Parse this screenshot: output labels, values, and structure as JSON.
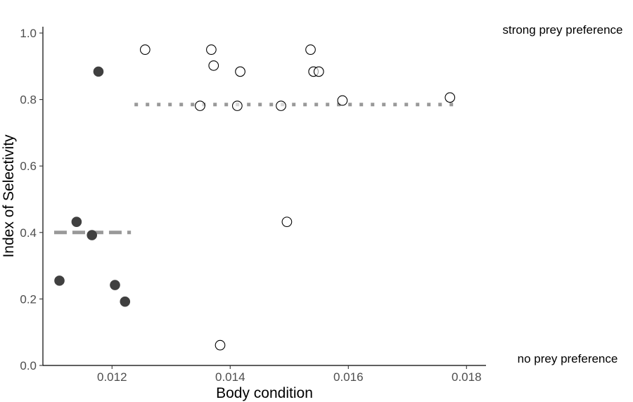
{
  "chart_data": {
    "type": "scatter",
    "xlabel": "Body condition",
    "ylabel": "Index of Selectivity",
    "xlim": [
      0.01083,
      0.01833
    ],
    "ylim": [
      0.0,
      1.0
    ],
    "x_ticks": [
      0.012,
      0.014,
      0.016,
      0.018
    ],
    "y_ticks": [
      0.0,
      0.2,
      0.4,
      0.6,
      0.8,
      1.0
    ],
    "grid": false,
    "annotations": {
      "top": "strong prey preference",
      "bottom": "no prey preference"
    },
    "series": [
      {
        "marker": "filled-circle",
        "color": "#404040",
        "points": [
          {
            "x": 0.01111,
            "y": 0.255
          },
          {
            "x": 0.0114,
            "y": 0.432
          },
          {
            "x": 0.01166,
            "y": 0.392
          },
          {
            "x": 0.01177,
            "y": 0.884
          },
          {
            "x": 0.01205,
            "y": 0.242
          },
          {
            "x": 0.01222,
            "y": 0.192
          }
        ]
      },
      {
        "marker": "open-circle",
        "color": "#000000",
        "points": [
          {
            "x": 0.01256,
            "y": 0.95
          },
          {
            "x": 0.01349,
            "y": 0.781
          },
          {
            "x": 0.01368,
            "y": 0.95
          },
          {
            "x": 0.01372,
            "y": 0.902
          },
          {
            "x": 0.01383,
            "y": 0.061
          },
          {
            "x": 0.01412,
            "y": 0.781
          },
          {
            "x": 0.01417,
            "y": 0.884
          },
          {
            "x": 0.01486,
            "y": 0.781
          },
          {
            "x": 0.01496,
            "y": 0.432
          },
          {
            "x": 0.01536,
            "y": 0.95
          },
          {
            "x": 0.01541,
            "y": 0.884
          },
          {
            "x": 0.0155,
            "y": 0.884
          },
          {
            "x": 0.0159,
            "y": 0.797
          },
          {
            "x": 0.01772,
            "y": 0.806
          }
        ]
      }
    ],
    "reference_lines": [
      {
        "style": "dashed",
        "color": "#999999",
        "y": 0.4,
        "x_start": 0.01102,
        "x_end": 0.01232
      },
      {
        "style": "dotted",
        "color": "#999999",
        "y": 0.785,
        "x_start": 0.01238,
        "x_end": 0.01778
      }
    ]
  }
}
